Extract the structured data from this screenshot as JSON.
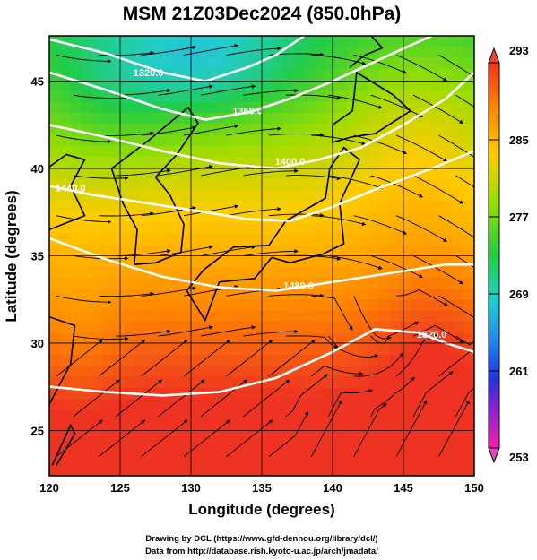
{
  "chart_data": {
    "type": "heatmap",
    "title": "MSM 21Z03Dec2024 (850.0hPa)",
    "xlabel": "Longitude (degrees)",
    "ylabel": "Latitude  (degrees)",
    "xlim": [
      120,
      150
    ],
    "ylim": [
      22.4,
      47.6
    ],
    "xticks": [
      "120",
      "125",
      "130",
      "135",
      "140",
      "145",
      "150"
    ],
    "yticks": [
      "25",
      "30",
      "35",
      "40",
      "45"
    ],
    "colorbar": {
      "min": 253,
      "max": 293,
      "ticks": [
        "293",
        "285",
        "277",
        "269",
        "261",
        "253"
      ]
    },
    "contour_lines": [
      {
        "label": "1320.0",
        "level": 1320
      },
      {
        "label": "1360.0",
        "level": 1360
      },
      {
        "label": "1400.0",
        "level": 1400
      },
      {
        "label": "1440.0",
        "level": 1440
      },
      {
        "label": "1480.0",
        "level": 1480
      },
      {
        "label": "1520.0",
        "level": 1520
      }
    ],
    "credits": [
      "Drawing by DCL (https://www.gfd-dennou.org/library/dcl/)",
      "Data from http://database.rish.kyoto-u.ac.jp/arch/jmadata/"
    ]
  }
}
